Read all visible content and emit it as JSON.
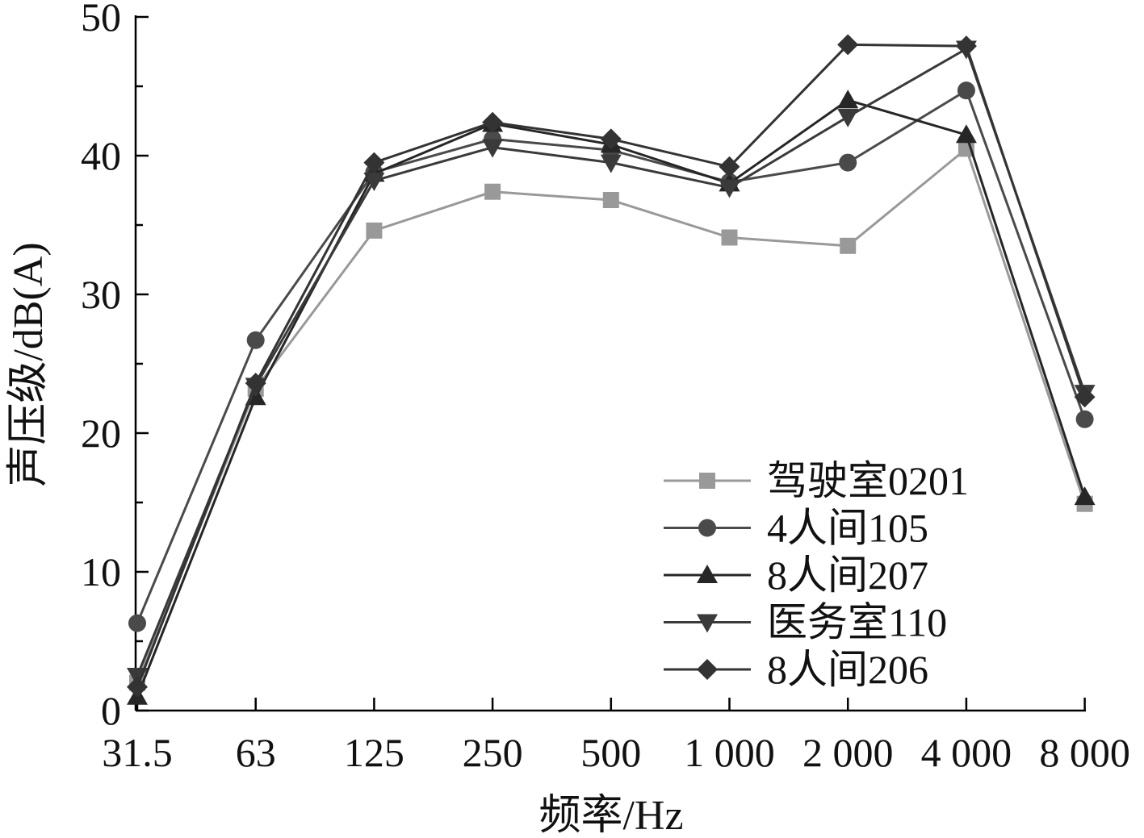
{
  "chart_data": {
    "type": "line",
    "title": "",
    "xlabel": "频率/Hz",
    "ylabel": "声压级/dB(A)",
    "categories": [
      "31.5",
      "63",
      "125",
      "250",
      "500",
      "1 000",
      "2 000",
      "4 000",
      "8 000"
    ],
    "ylim": [
      0,
      50
    ],
    "yticks": [
      "0",
      "10",
      "20",
      "30",
      "40",
      "50"
    ],
    "grid": false,
    "legend_position": "bottom-right",
    "series": [
      {
        "name": "驾驶室0201",
        "marker": "square",
        "color": "#999999",
        "values": [
          2.0,
          23.2,
          34.6,
          37.4,
          36.8,
          34.1,
          33.5,
          40.5,
          14.9
        ]
      },
      {
        "name": "4人间105",
        "marker": "circle",
        "color": "#4a4a4a",
        "values": [
          6.3,
          26.7,
          38.8,
          41.2,
          40.4,
          38.1,
          39.5,
          44.7,
          21.0
        ]
      },
      {
        "name": "8人间207",
        "marker": "triangle-up",
        "color": "#262626",
        "values": [
          1.0,
          22.6,
          38.7,
          42.3,
          40.8,
          38.0,
          44.0,
          41.5,
          15.4
        ]
      },
      {
        "name": "医务室110",
        "marker": "triangle-down",
        "color": "#3a3a3a",
        "values": [
          2.5,
          23.4,
          38.2,
          40.6,
          39.5,
          37.7,
          42.8,
          47.7,
          22.9
        ]
      },
      {
        "name": "8人间206",
        "marker": "diamond",
        "color": "#333333",
        "values": [
          1.7,
          23.6,
          39.5,
          42.4,
          41.2,
          39.2,
          48.0,
          47.9,
          22.6
        ]
      }
    ]
  }
}
